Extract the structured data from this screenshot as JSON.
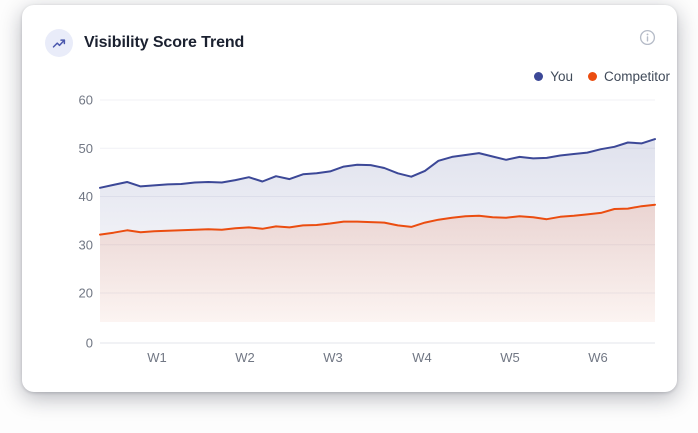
{
  "card": {
    "title": "Visibility Score Trend"
  },
  "chart_data": {
    "type": "area",
    "title": "Visibility Score Trend",
    "x_tick_labels": [
      "W1",
      "W2",
      "W3",
      "W4",
      "W5",
      "W6"
    ],
    "y_tick_labels": [
      "60",
      "50",
      "40",
      "30",
      "20",
      "0"
    ],
    "ylim": [
      0,
      60
    ],
    "grid": "horizontal gridlines at 20,30,40,50,60; baseline axis labeled 0",
    "legend_position": "top-right",
    "series": [
      {
        "name": "You",
        "color": "#3c4897",
        "values": [
          41.8,
          42.4,
          43.0,
          42.1,
          42.3,
          42.5,
          42.6,
          42.9,
          43.0,
          42.9,
          43.4,
          44.0,
          43.1,
          44.2,
          43.6,
          44.6,
          44.8,
          45.2,
          46.2,
          46.6,
          46.5,
          45.9,
          44.8,
          44.1,
          45.3,
          47.4,
          48.2,
          48.6,
          49.0,
          48.3,
          47.6,
          48.2,
          47.9,
          48.0,
          48.5,
          48.8,
          49.1,
          49.8,
          50.3,
          51.2,
          51.0,
          51.9
        ]
      },
      {
        "name": "Competitor",
        "color": "#eb4d10",
        "values": [
          32.1,
          32.5,
          33.0,
          32.6,
          32.8,
          32.9,
          33.0,
          33.1,
          33.2,
          33.1,
          33.4,
          33.6,
          33.3,
          33.8,
          33.6,
          34.0,
          34.1,
          34.4,
          34.8,
          34.8,
          34.7,
          34.6,
          34.0,
          33.7,
          34.6,
          35.2,
          35.6,
          35.9,
          36.0,
          35.7,
          35.6,
          35.9,
          35.7,
          35.3,
          35.8,
          36.0,
          36.3,
          36.6,
          37.4,
          37.5,
          38.0,
          38.3
        ]
      }
    ]
  }
}
